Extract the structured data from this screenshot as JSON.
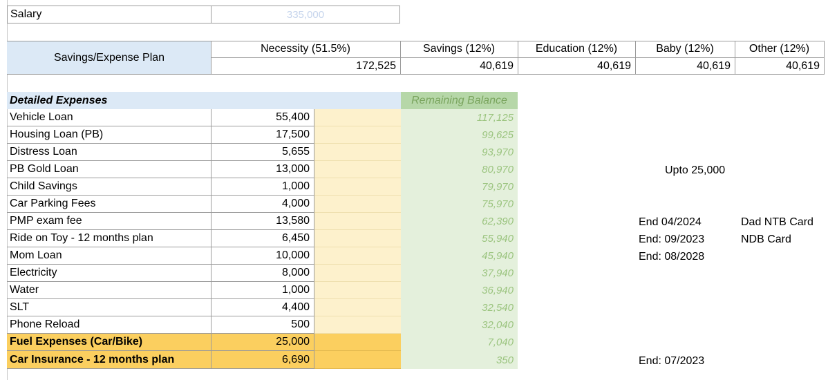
{
  "salary": {
    "label": "Salary",
    "value": "335,000"
  },
  "plan": {
    "label": "Savings/Expense Plan",
    "categories": [
      {
        "header": "Necessity (51.5%)",
        "value": "172,525"
      },
      {
        "header": "Savings (12%)",
        "value": "40,619"
      },
      {
        "header": "Education (12%)",
        "value": "40,619"
      },
      {
        "header": "Baby (12%)",
        "value": "40,619"
      },
      {
        "header": "Other (12%)",
        "value": "40,619"
      }
    ]
  },
  "expenses": {
    "title": "Detailed Expenses",
    "remaining_header": "Remaining Balance",
    "rows": [
      {
        "name": "Vehicle Loan",
        "amount": "55,400",
        "remaining": "117,125"
      },
      {
        "name": "Housing Loan (PB)",
        "amount": "17,500",
        "remaining": "99,625"
      },
      {
        "name": "Distress Loan",
        "amount": "5,655",
        "remaining": "93,970"
      },
      {
        "name": "PB Gold Loan",
        "amount": "13,000",
        "remaining": "80,970"
      },
      {
        "name": "Child Savings",
        "amount": "1,000",
        "remaining": "79,970"
      },
      {
        "name": "Car Parking Fees",
        "amount": "4,000",
        "remaining": "75,970"
      },
      {
        "name": "PMP exam fee",
        "amount": "13,580",
        "remaining": "62,390"
      },
      {
        "name": "Ride on Toy - 12 months plan",
        "amount": "6,450",
        "remaining": "55,940"
      },
      {
        "name": "Mom Loan",
        "amount": "10,000",
        "remaining": "45,940"
      },
      {
        "name": "Electricity",
        "amount": "8,000",
        "remaining": "37,940"
      },
      {
        "name": "Water",
        "amount": "1,000",
        "remaining": "36,940"
      },
      {
        "name": "SLT",
        "amount": "4,400",
        "remaining": "32,540"
      },
      {
        "name": "Phone Reload",
        "amount": "500",
        "remaining": "32,040"
      },
      {
        "name": "Fuel Expenses (Car/Bike)",
        "amount": "25,000",
        "remaining": "7,040"
      },
      {
        "name": "Car Insurance - 12 months plan",
        "amount": "6,690",
        "remaining": "350"
      }
    ]
  },
  "notes": {
    "gold_loan": "Upto 25,000",
    "pmp_end": "End 04/2024",
    "pmp_card": "Dad NTB Card",
    "toy_end": "End: 09/2023",
    "toy_card": "NDB Card",
    "mom_end": "End: 08/2028",
    "insurance_end": "End: 07/2023"
  }
}
